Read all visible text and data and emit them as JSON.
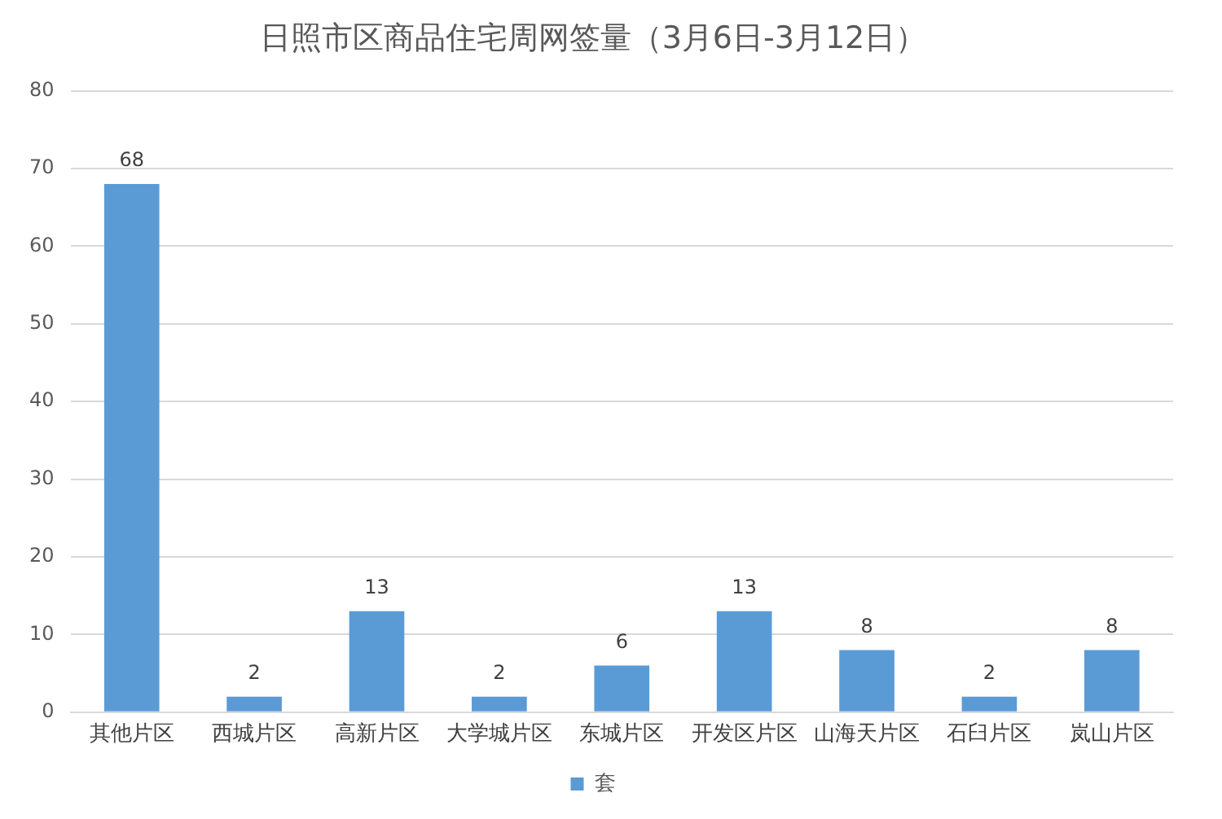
{
  "chart_data": {
    "type": "bar",
    "title": "日照市区商品住宅周网签量（3月6日-3月12日）",
    "categories": [
      "其他片区",
      "西城片区",
      "高新片区",
      "大学城片区",
      "东城片区",
      "开发区片区",
      "山海天片区",
      "石臼片区",
      "岚山片区"
    ],
    "series": [
      {
        "name": "套",
        "color": "#5b9bd5",
        "values": [
          68,
          2,
          13,
          2,
          6,
          13,
          8,
          2,
          8
        ]
      }
    ],
    "ylim": [
      0,
      80
    ],
    "yticks": [
      0,
      10,
      20,
      30,
      40,
      50,
      60,
      70,
      80
    ],
    "grid": "y",
    "legend": "bottom",
    "data_labels": true
  }
}
